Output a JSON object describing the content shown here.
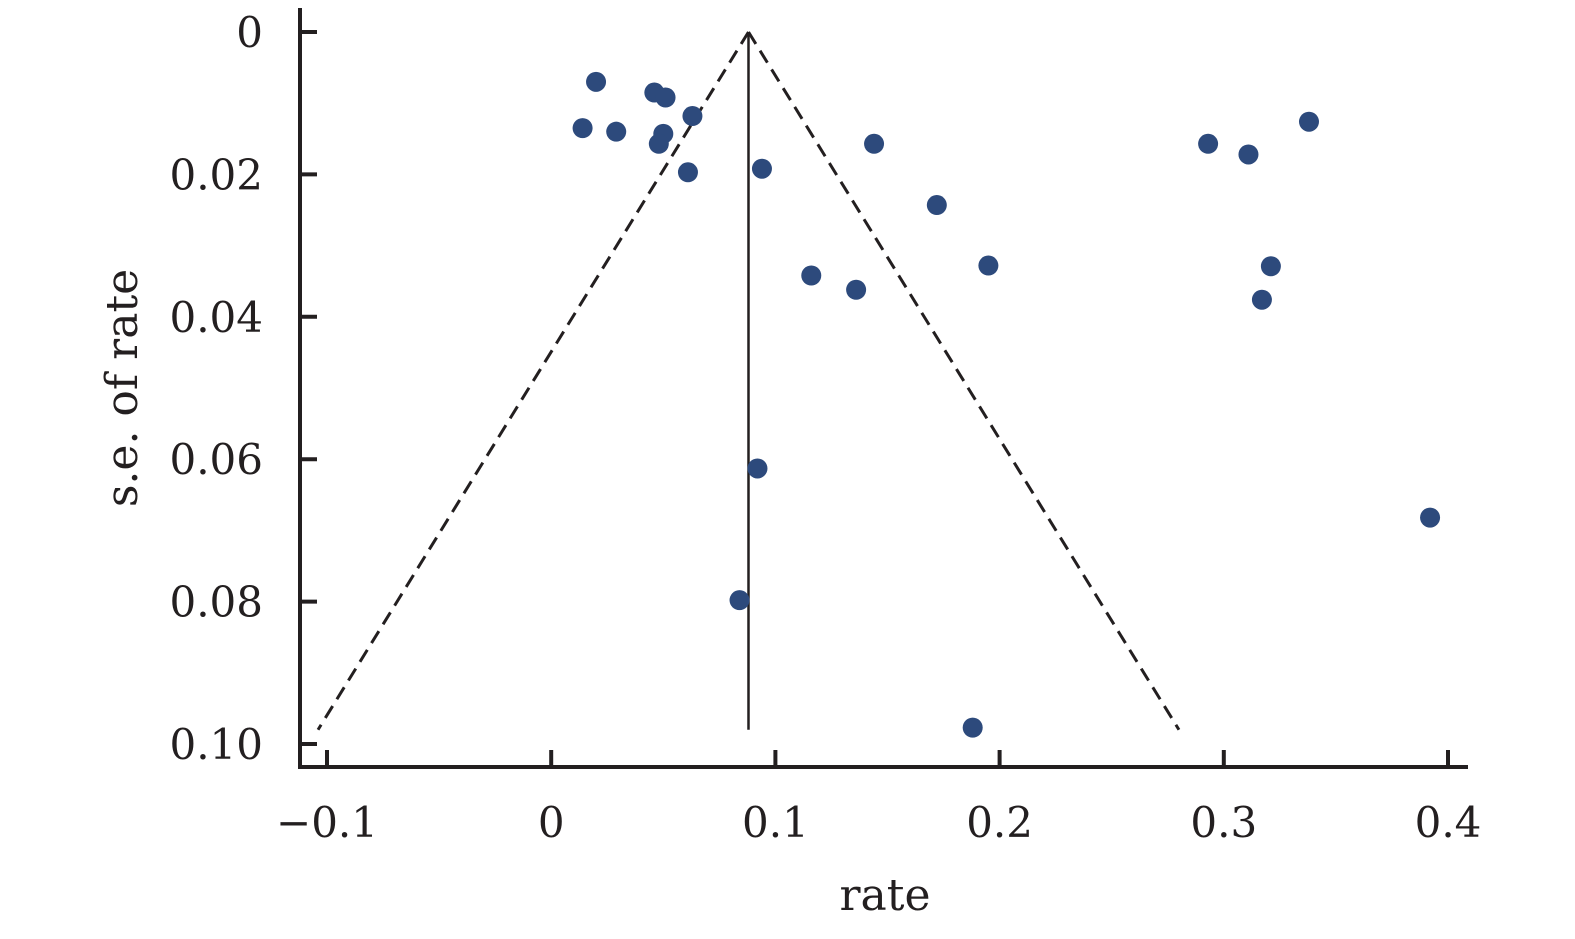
{
  "chart_data": {
    "type": "scatter",
    "title": "",
    "xlabel": "rate",
    "ylabel": "s.e. of rate",
    "xlim": [
      -0.113,
      0.408
    ],
    "ylim": [
      0.103,
      -0.003
    ],
    "y_inverted": true,
    "x_ticks": [
      -0.1,
      0,
      0.1,
      0.2,
      0.3,
      0.4
    ],
    "x_tick_labels": [
      "−0.1",
      "0",
      "0.1",
      "0.2",
      "0.3",
      "0.4"
    ],
    "y_ticks": [
      0,
      0.02,
      0.04,
      0.06,
      0.08,
      0.1
    ],
    "y_tick_labels": [
      "0",
      "0.02",
      "0.04",
      "0.06",
      "0.08",
      "0.10"
    ],
    "grid": false,
    "legend": "none",
    "pooled_estimate": 0.088,
    "pooled_line_extent": [
      0,
      0.098
    ],
    "funnel_limits": {
      "apex": [
        0.088,
        0
      ],
      "left_bottom": [
        -0.104,
        0.098
      ],
      "right_bottom": [
        0.28,
        0.098
      ]
    },
    "marker_color": "#2d4a7c",
    "line_color": "#231f20",
    "points": [
      {
        "x": 0.02,
        "y": 0.007
      },
      {
        "x": 0.046,
        "y": 0.0085
      },
      {
        "x": 0.051,
        "y": 0.0092
      },
      {
        "x": 0.014,
        "y": 0.0135
      },
      {
        "x": 0.029,
        "y": 0.014
      },
      {
        "x": 0.05,
        "y": 0.0143
      },
      {
        "x": 0.048,
        "y": 0.0157
      },
      {
        "x": 0.063,
        "y": 0.0118
      },
      {
        "x": 0.061,
        "y": 0.0197
      },
      {
        "x": 0.094,
        "y": 0.0192
      },
      {
        "x": 0.144,
        "y": 0.0157
      },
      {
        "x": 0.172,
        "y": 0.0243
      },
      {
        "x": 0.116,
        "y": 0.0342
      },
      {
        "x": 0.136,
        "y": 0.0362
      },
      {
        "x": 0.195,
        "y": 0.0328
      },
      {
        "x": 0.293,
        "y": 0.0157
      },
      {
        "x": 0.311,
        "y": 0.0172
      },
      {
        "x": 0.338,
        "y": 0.0126
      },
      {
        "x": 0.321,
        "y": 0.0329
      },
      {
        "x": 0.317,
        "y": 0.0376
      },
      {
        "x": 0.092,
        "y": 0.0613
      },
      {
        "x": 0.084,
        "y": 0.0798
      },
      {
        "x": 0.188,
        "y": 0.0977
      },
      {
        "x": 0.392,
        "y": 0.0682
      }
    ]
  }
}
